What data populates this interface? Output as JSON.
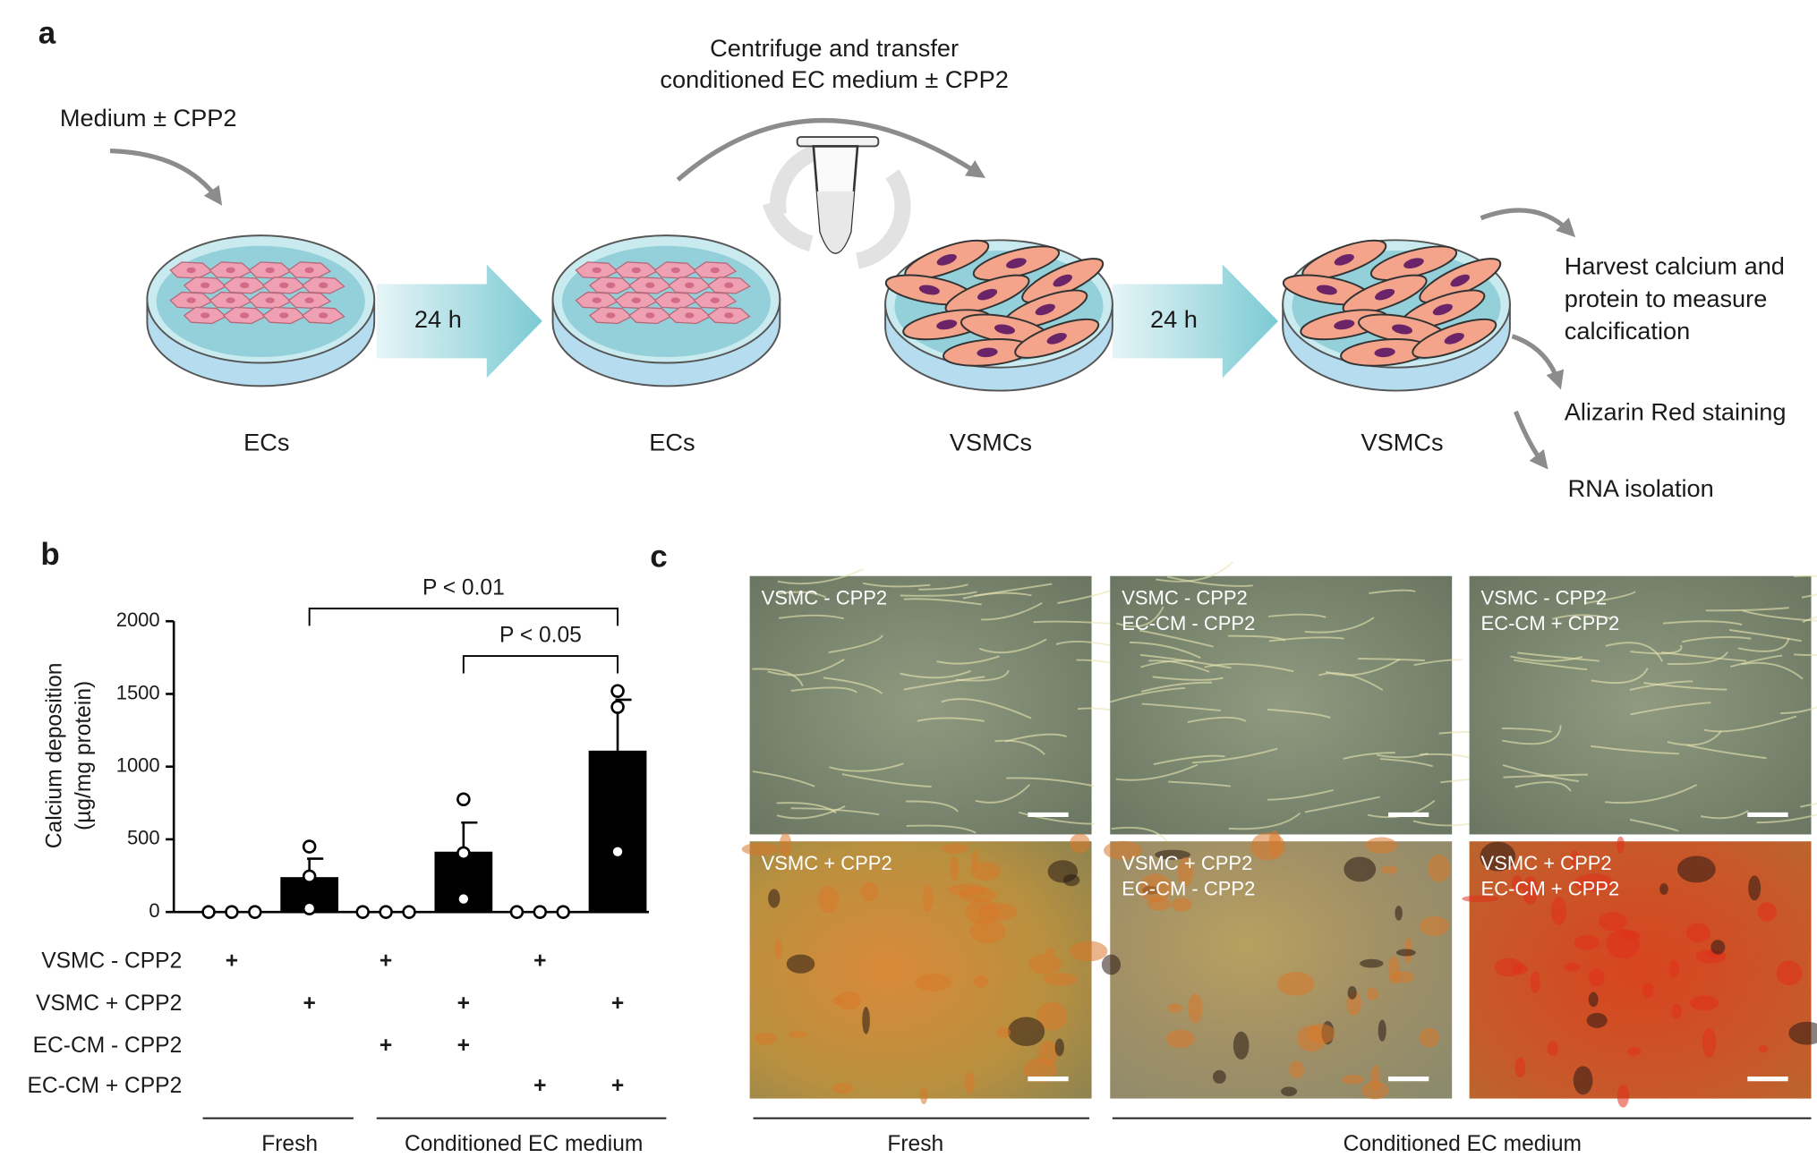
{
  "panel_labels": [
    "a",
    "b",
    "c"
  ],
  "panel_a": {
    "top_note": "Medium ± CPP2",
    "transfer_note": [
      "Centrifuge and transfer",
      "conditioned EC medium ± CPP2"
    ],
    "steps": [
      "24 h",
      "24 h"
    ],
    "dishes": [
      "ECs",
      "ECs",
      "VSMCs",
      "VSMCs"
    ],
    "readouts": [
      [
        "Harvest calcium and",
        "protein to measure",
        "calcification"
      ],
      [
        "Alizarin Red staining"
      ],
      [
        "RNA isolation"
      ]
    ]
  },
  "chart_data": {
    "type": "bar",
    "y_label": [
      "Calcium deposition",
      "(µg/mg protein)"
    ],
    "categories": [
      null,
      null,
      null,
      null,
      null,
      null
    ],
    "values": [
      0,
      240,
      0,
      415,
      0,
      1110
    ],
    "errors": [
      0,
      127,
      0,
      200,
      0,
      350
    ],
    "points": [
      [
        0,
        0,
        0
      ],
      [
        450,
        245,
        25
      ],
      [
        0,
        0,
        0
      ],
      [
        775,
        405,
        90
      ],
      [
        0,
        0,
        0
      ],
      [
        1520,
        1410,
        415
      ]
    ],
    "color": "#000000",
    "ylim": [
      0,
      2000
    ],
    "yticks": [
      0,
      500,
      1000,
      1500,
      2000
    ],
    "annotations": [
      "P < 0.01",
      "P < 0.05"
    ],
    "conditions": [
      {
        "label": "VSMC - CPP2",
        "marks": [
          "+",
          null,
          "+",
          null,
          "+",
          null
        ]
      },
      {
        "label": "VSMC + CPP2",
        "marks": [
          null,
          "+",
          null,
          "+",
          null,
          "+"
        ]
      },
      {
        "label": "EC-CM - CPP2",
        "marks": [
          null,
          null,
          "+",
          "+",
          null,
          null
        ]
      },
      {
        "label": "EC-CM + CPP2",
        "marks": [
          null,
          null,
          null,
          null,
          "+",
          "+"
        ]
      }
    ],
    "groups": [
      "Fresh",
      "Conditioned EC medium"
    ]
  },
  "panel_c": {
    "images": [
      [
        "VSMC - CPP2"
      ],
      [
        "VSMC - CPP2",
        "EC-CM - CPP2"
      ],
      [
        "VSMC - CPP2",
        "EC-CM + CPP2"
      ],
      [
        "VSMC + CPP2"
      ],
      [
        "VSMC + CPP2",
        "EC-CM - CPP2"
      ],
      [
        "VSMC + CPP2",
        "EC-CM + CPP2"
      ]
    ],
    "groups": [
      "Fresh",
      "Conditioned EC medium"
    ]
  }
}
